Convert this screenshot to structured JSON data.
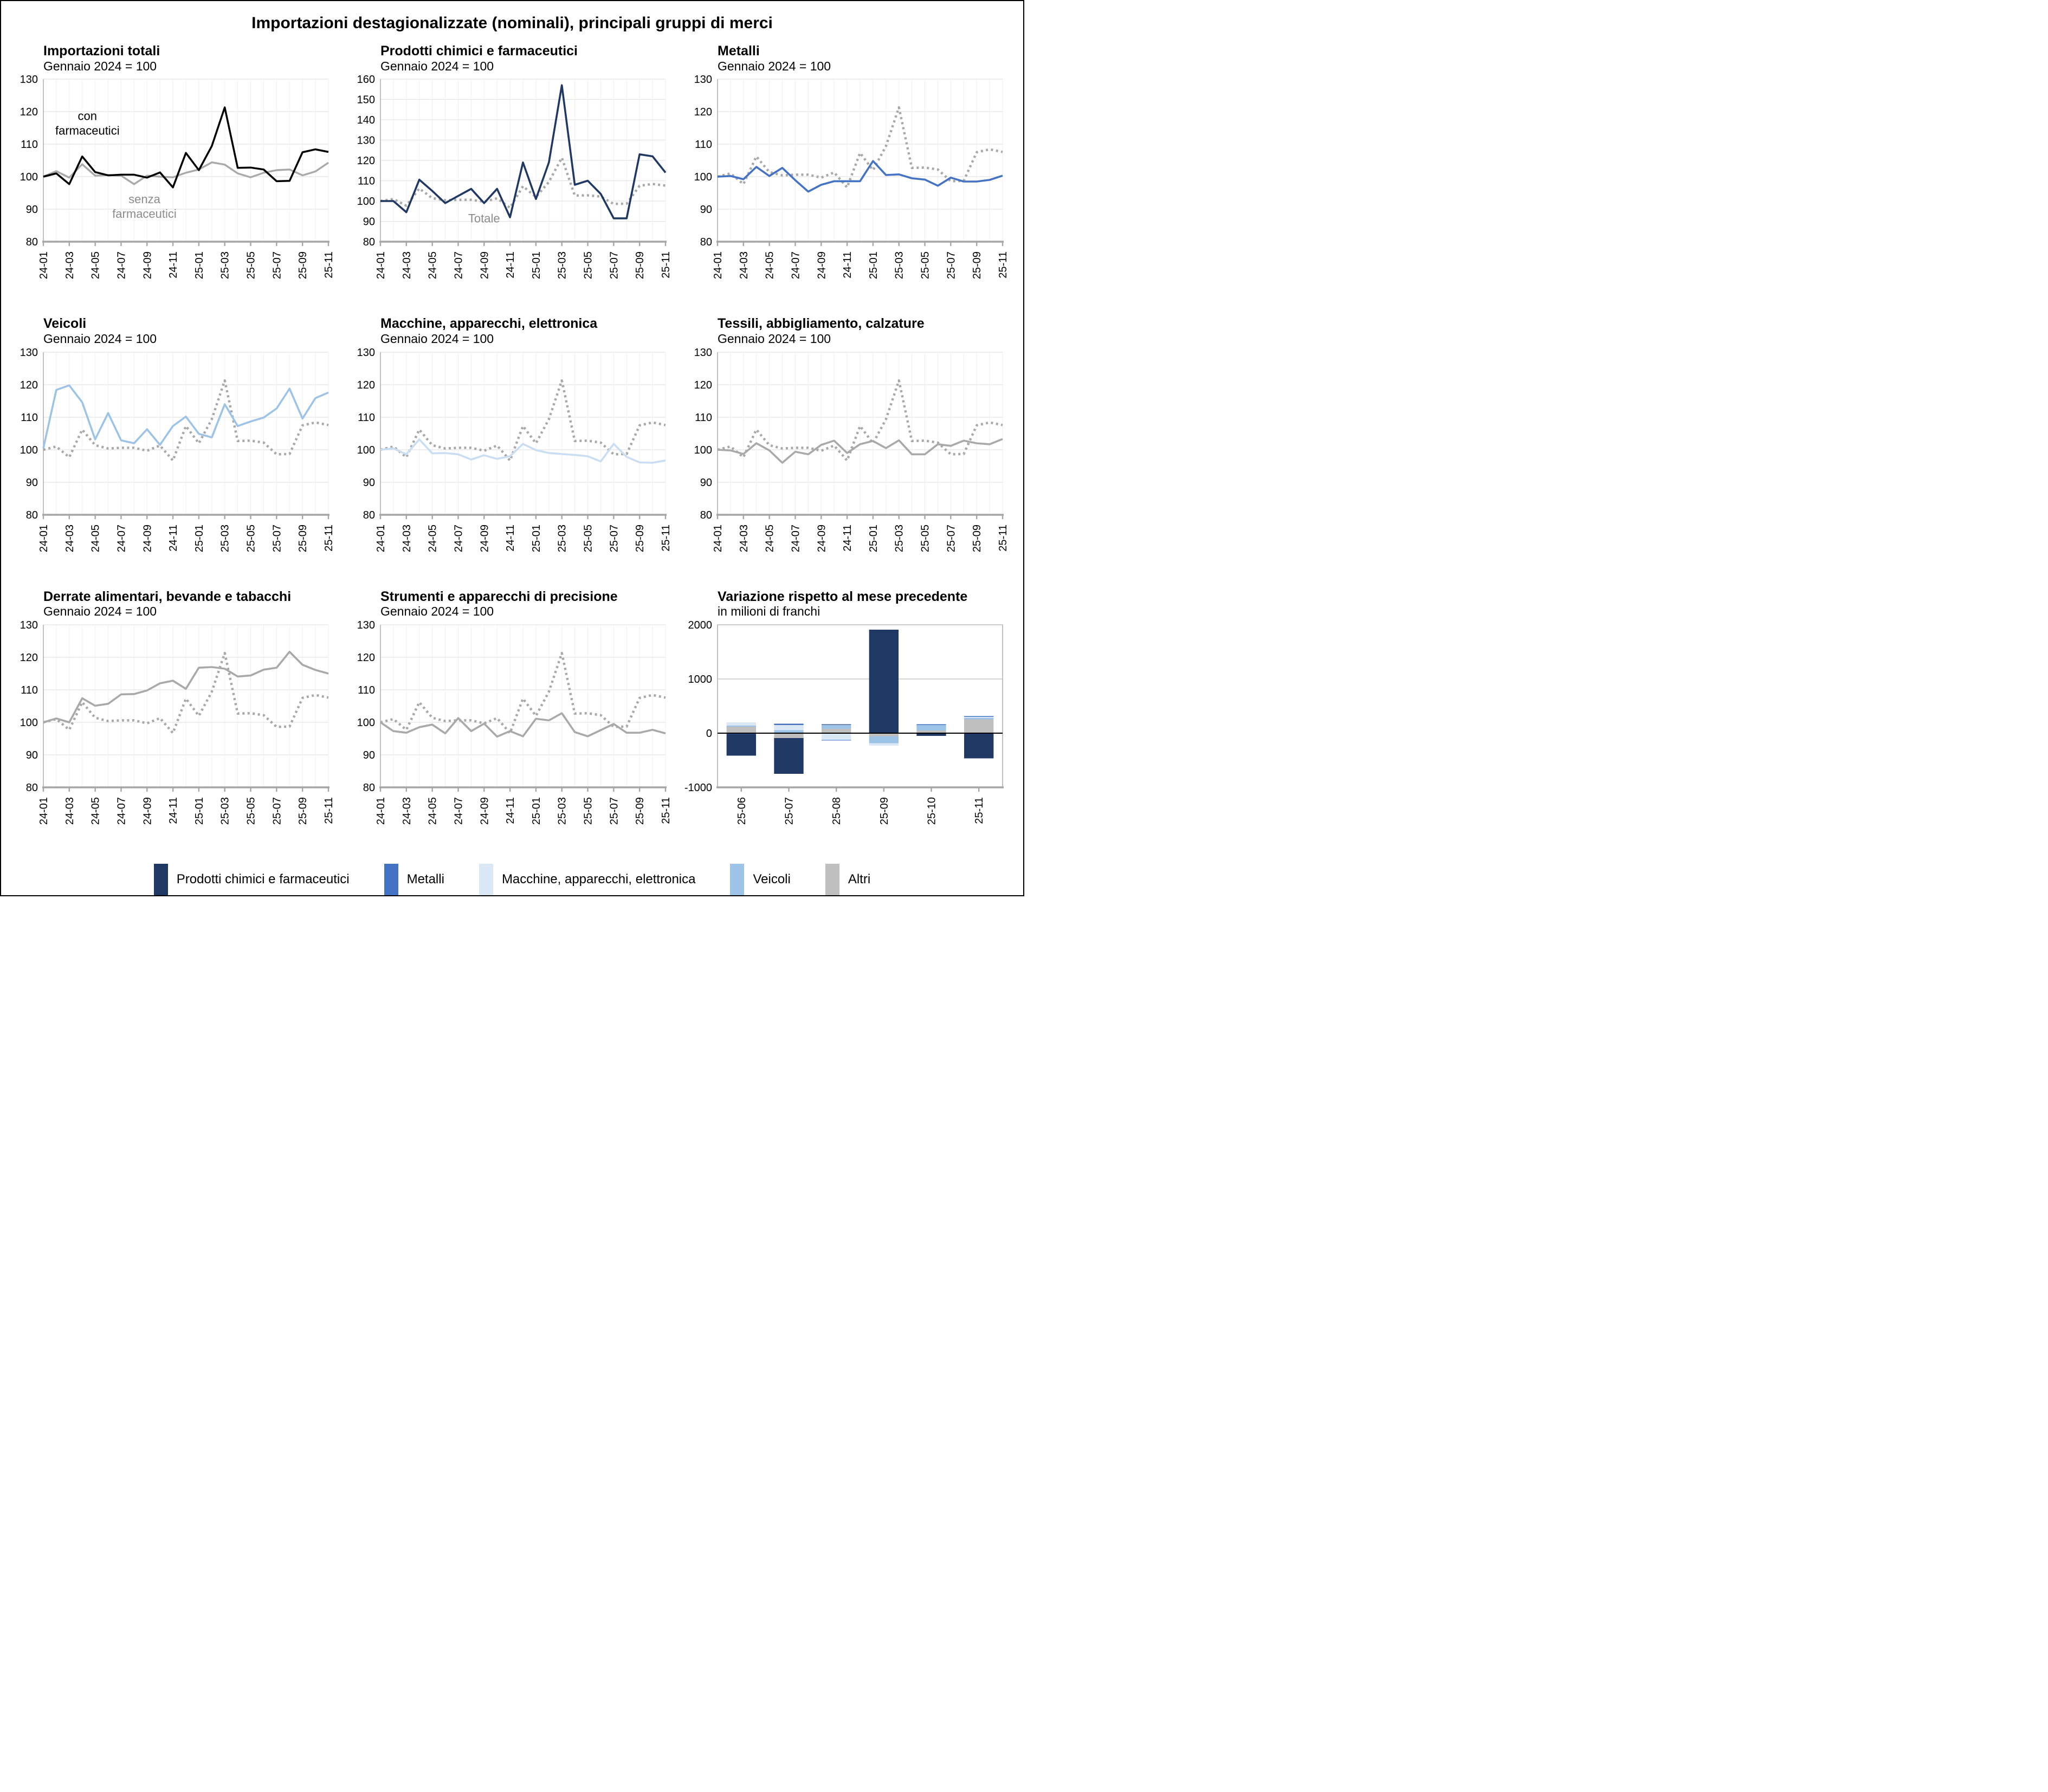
{
  "page_title": "Importazioni destagionalizzate (nominali), principali gruppi di merci",
  "chart_data": {
    "type": "multi-panel",
    "months": [
      "24-01",
      "24-02",
      "24-03",
      "24-04",
      "24-05",
      "24-06",
      "24-07",
      "24-08",
      "24-09",
      "24-10",
      "24-11",
      "24-12",
      "25-01",
      "25-02",
      "25-03",
      "25-04",
      "25-05",
      "25-06",
      "25-07",
      "25-08",
      "25-09",
      "25-10",
      "25-11"
    ],
    "x_tick_every": 2,
    "series": {
      "totale": [
        100,
        101,
        97.7,
        106.2,
        101.4,
        100.4,
        100.6,
        100.6,
        99.7,
        101.3,
        96.7,
        107.3,
        102,
        109.4,
        121.3,
        102.7,
        102.8,
        102.2,
        98.6,
        98.7,
        107.5,
        108.4,
        107.6
      ],
      "senza": [
        100,
        101.7,
        99.7,
        103.8,
        100.3,
        100.5,
        100.3,
        97.7,
        100.3,
        100,
        99.8,
        101.2,
        102.2,
        104.4,
        103.7,
        101,
        99.8,
        101.2,
        102,
        102.2,
        100.4,
        101.6,
        104.3
      ],
      "chimici": [
        100,
        100,
        94.5,
        110.5,
        105,
        99,
        102.5,
        106,
        99,
        106,
        92,
        119,
        101,
        119,
        157,
        108,
        110,
        103.5,
        91.5,
        91.5,
        123,
        122,
        114
      ],
      "metalli": [
        100,
        100.2,
        99.2,
        103,
        100.2,
        102.7,
        98.9,
        95.4,
        97.5,
        98.6,
        98.6,
        98.6,
        104.8,
        100.5,
        100.7,
        99.5,
        99.1,
        97.2,
        99.7,
        98.5,
        98.5,
        99,
        100.3
      ],
      "veicoli": [
        100.5,
        118.4,
        119.8,
        114.6,
        103.2,
        111.3,
        102.9,
        102,
        106.3,
        101.5,
        107.3,
        110.2,
        104.9,
        103.8,
        114,
        107.3,
        108.7,
        109.9,
        112.7,
        118.8,
        109.6,
        115.9,
        117.6
      ],
      "macchine": [
        100,
        100.4,
        98.6,
        103.2,
        98.9,
        99,
        98.6,
        97,
        98.3,
        97.2,
        98,
        101.8,
        99.9,
        99,
        98.7,
        98.4,
        98,
        96.4,
        101.8,
        97.8,
        96.1,
        96,
        96.7
      ],
      "tessili": [
        100,
        99.8,
        98.7,
        102,
        99.8,
        96,
        99.4,
        98.6,
        101.5,
        102.8,
        99,
        101.7,
        102.7,
        100.5,
        102.9,
        98.6,
        98.6,
        101.7,
        101.2,
        102.8,
        102,
        101.7,
        103.3
      ],
      "derrate": [
        100,
        101.2,
        100,
        107.4,
        105.1,
        105.7,
        108.6,
        108.7,
        109.8,
        112,
        112.8,
        110.3,
        116.8,
        117,
        116.5,
        114.1,
        114.4,
        116.2,
        116.8,
        121.7,
        117.7,
        116.1,
        115
      ],
      "strumenti": [
        100,
        97.3,
        96.8,
        98.5,
        99.3,
        96.6,
        101.3,
        97.3,
        99.6,
        95.6,
        97.3,
        95.7,
        101.1,
        100.6,
        102.8,
        97,
        95.7,
        97.6,
        99.5,
        96.8,
        96.8,
        97.7,
        96.6
      ]
    },
    "charts": [
      {
        "type": "line",
        "title": "Importazioni totali",
        "subtitle": "Gennaio 2024 = 100",
        "ylim": [
          80,
          130
        ],
        "yticks": [
          80,
          90,
          100,
          110,
          120,
          130
        ],
        "lines": [
          {
            "series": "senza",
            "color": "#A9A9A9",
            "width": 3.4,
            "dash": false
          },
          {
            "series": "totale",
            "color": "#000000",
            "width": 3.5,
            "dash": false
          }
        ],
        "annotations": [
          {
            "lines": [
              "con",
              "farmaceutici"
            ],
            "x": 3.4,
            "ys": [
              117.4,
              112.9
            ],
            "color": "#000000"
          },
          {
            "lines": [
              "senza",
              "farmaceutici"
            ],
            "x": 7.8,
            "ys": [
              91.8,
              87.3
            ],
            "color": "#8C8C8C"
          }
        ]
      },
      {
        "type": "line",
        "title": "Prodotti chimici e farmaceutici",
        "subtitle": "Gennaio 2024 = 100",
        "ylim": [
          80,
          160
        ],
        "yticks": [
          80,
          90,
          100,
          110,
          120,
          130,
          140,
          150,
          160
        ],
        "lines": [
          {
            "series": "totale",
            "color": "#A9A9A9",
            "width": 4.5,
            "dash": true
          },
          {
            "series": "chimici",
            "color": "#1F3864",
            "width": 3.6,
            "dash": false
          }
        ],
        "annotations": [
          {
            "lines": [
              "Totale"
            ],
            "x": 8,
            "ys": [
              89.5
            ],
            "color": "#8C8C8C"
          }
        ]
      },
      {
        "type": "line",
        "title": "Metalli",
        "subtitle": "Gennaio 2024 = 100",
        "ylim": [
          80,
          130
        ],
        "yticks": [
          80,
          90,
          100,
          110,
          120,
          130
        ],
        "lines": [
          {
            "series": "totale",
            "color": "#A9A9A9",
            "width": 4.5,
            "dash": true
          },
          {
            "series": "metalli",
            "color": "#4472C4",
            "width": 3.6,
            "dash": false
          }
        ],
        "annotations": []
      },
      {
        "type": "line",
        "title": "Veicoli",
        "subtitle": "Gennaio 2024 = 100",
        "ylim": [
          80,
          130
        ],
        "yticks": [
          80,
          90,
          100,
          110,
          120,
          130
        ],
        "lines": [
          {
            "series": "totale",
            "color": "#A9A9A9",
            "width": 4.5,
            "dash": true
          },
          {
            "series": "veicoli",
            "color": "#9DC3E6",
            "width": 3.6,
            "dash": false
          }
        ],
        "annotations": []
      },
      {
        "type": "line",
        "title": "Macchine, apparecchi, elettronica",
        "subtitle": "Gennaio 2024 = 100",
        "ylim": [
          80,
          130
        ],
        "yticks": [
          80,
          90,
          100,
          110,
          120,
          130
        ],
        "lines": [
          {
            "series": "totale",
            "color": "#A9A9A9",
            "width": 4.5,
            "dash": true
          },
          {
            "series": "macchine",
            "color": "#C9DEF2",
            "width": 3.6,
            "dash": false
          }
        ],
        "annotations": []
      },
      {
        "type": "line",
        "title": "Tessili, abbigliamento, calzature",
        "subtitle": "Gennaio 2024 = 100",
        "ylim": [
          80,
          130
        ],
        "yticks": [
          80,
          90,
          100,
          110,
          120,
          130
        ],
        "lines": [
          {
            "series": "totale",
            "color": "#A9A9A9",
            "width": 4.5,
            "dash": true
          },
          {
            "series": "tessili",
            "color": "#A9A9A9",
            "width": 3.6,
            "dash": false
          }
        ],
        "annotations": []
      },
      {
        "type": "line",
        "title": "Derrate alimentari, bevande e tabacchi",
        "subtitle": "Gennaio 2024 = 100",
        "ylim": [
          80,
          130
        ],
        "yticks": [
          80,
          90,
          100,
          110,
          120,
          130
        ],
        "lines": [
          {
            "series": "totale",
            "color": "#A9A9A9",
            "width": 4.5,
            "dash": true
          },
          {
            "series": "derrate",
            "color": "#A9A9A9",
            "width": 3.6,
            "dash": false
          }
        ],
        "annotations": []
      },
      {
        "type": "line",
        "title": "Strumenti e apparecchi di precisione",
        "subtitle": "Gennaio 2024 = 100",
        "ylim": [
          80,
          130
        ],
        "yticks": [
          80,
          90,
          100,
          110,
          120,
          130
        ],
        "lines": [
          {
            "series": "totale",
            "color": "#A9A9A9",
            "width": 4.5,
            "dash": true
          },
          {
            "series": "strumenti",
            "color": "#A9A9A9",
            "width": 3.6,
            "dash": false
          }
        ],
        "annotations": []
      },
      {
        "type": "bar",
        "title": "Variazione rispetto al mese precedente",
        "subtitle": "in milioni di franchi",
        "ylim": [
          -1000,
          2000
        ],
        "yticks": [
          -1000,
          0,
          1000,
          2000
        ],
        "categories": [
          "25-06",
          "25-07",
          "25-08",
          "25-09",
          "25-10",
          "25-11"
        ],
        "stack_order": [
          "altri",
          "veicoli",
          "macchine",
          "metalli",
          "chimici"
        ],
        "bars": {
          "chimici": {
            "label": "Prodotti chimici e farmaceutici",
            "color": "#1F3864",
            "values": [
              -400,
              -660,
              10,
              1910,
              -50,
              -465
            ]
          },
          "metalli": {
            "label": "Metalli",
            "color": "#4472C4",
            "values": [
              -15,
              25,
              -10,
              0,
              15,
              15
            ]
          },
          "macchine": {
            "label": "Macchine, apparecchi, elettronica",
            "color": "#DAE7F5",
            "values": [
              60,
              95,
              -125,
              -45,
              0,
              20
            ]
          },
          "veicoli": {
            "label": "Veicoli",
            "color": "#9DC3E6",
            "values": [
              20,
              55,
              75,
              -125,
              100,
              25
            ]
          },
          "altri": {
            "label": "Altri",
            "color": "#BFBFBF",
            "values": [
              120,
              -90,
              80,
              -60,
              50,
              255
            ]
          }
        }
      }
    ],
    "legend": [
      {
        "label": "Prodotti chimici e farmaceutici",
        "color": "#1F3864"
      },
      {
        "label": "Metalli",
        "color": "#4472C4"
      },
      {
        "label": "Macchine, apparecchi, elettronica",
        "color": "#DAE7F5"
      },
      {
        "label": "Veicoli",
        "color": "#9DC3E6"
      },
      {
        "label": "Altri",
        "color": "#BFBFBF"
      }
    ]
  }
}
